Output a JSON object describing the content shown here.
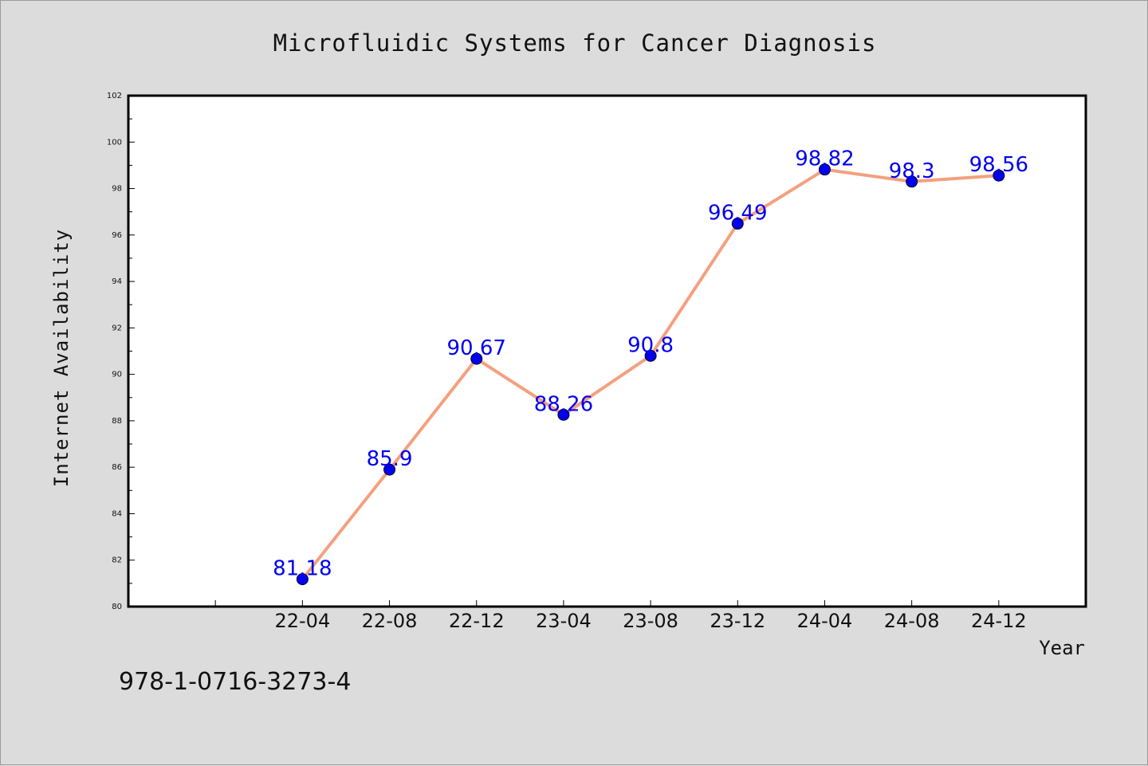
{
  "chart_data": {
    "type": "line",
    "title": "Microfluidic Systems for Cancer Diagnosis",
    "xlabel": "Year",
    "ylabel": "Internet Availability",
    "categories": [
      "22-04",
      "22-08",
      "22-12",
      "23-04",
      "23-08",
      "23-12",
      "24-04",
      "24-08",
      "24-12"
    ],
    "series": [
      {
        "values": [
          81.18,
          85.9,
          90.67,
          88.26,
          90.8,
          96.49,
          98.82,
          98.3,
          98.56
        ],
        "labels": [
          "81.18",
          "85.9",
          "90.67",
          "88.26",
          "90.8",
          "96.49",
          "98.82",
          "98.3",
          "98.56"
        ],
        "line_color": "#f4a07f",
        "marker_color": "#0000ee",
        "label_color": "#0000ee"
      }
    ],
    "ylim": [
      80,
      102
    ],
    "yticks": [
      "80",
      "82",
      "84",
      "86",
      "88",
      "90",
      "92",
      "94",
      "96",
      "98",
      "100",
      "102"
    ],
    "grid": false,
    "legend": "none"
  },
  "footnote": "978-1-0716-3273-4"
}
